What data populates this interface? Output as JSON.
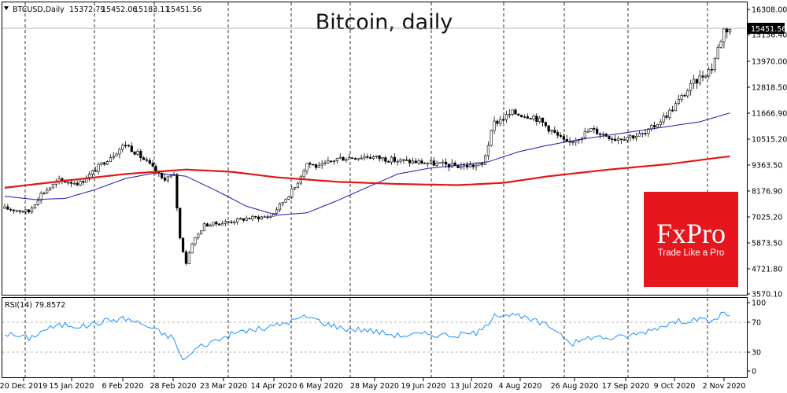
{
  "chart_data": [
    {
      "type": "candlestick",
      "title": "Bitcoin, daily",
      "header": {
        "symbol": "BTCUSD,Daily",
        "ohlc": [
          "15372.79",
          "15452.06",
          "15183.11",
          "15451.56"
        ]
      },
      "ylim": [
        3000,
        16300
      ],
      "y_ticks": [
        "16308.00",
        "15156.40",
        "13970.00",
        "12818.50",
        "11666.90",
        "10515.20",
        "9363.50",
        "8176.90",
        "7025.20",
        "5873.50",
        "4721.80",
        "3570.10"
      ],
      "current_price_label": "15451.56",
      "x_tick_labels": [
        "20 Dec 2019",
        "15 Jan 2020",
        "6 Feb 2020",
        "28 Feb 2020",
        "23 Mar 2020",
        "14 Apr 2020",
        "6 May 2020",
        "28 May 2020",
        "19 Jun 2020",
        "13 Jul 2020",
        "4 Aug 2020",
        "26 Aug 2020",
        "17 Sep 2020",
        "9 Oct 2020",
        "2 Nov 2020"
      ],
      "grid": "vertical dashed",
      "moving_averages": [
        {
          "color": "#1a1aa8",
          "points": [
            [
              0,
              7900
            ],
            [
              10,
              7750
            ],
            [
              20,
              7800
            ],
            [
              30,
              8200
            ],
            [
              40,
              8700
            ],
            [
              50,
              8950
            ],
            [
              60,
              8800
            ],
            [
              70,
              8150
            ],
            [
              80,
              7450
            ],
            [
              90,
              7050
            ],
            [
              100,
              7150
            ],
            [
              110,
              7700
            ],
            [
              120,
              8300
            ],
            [
              130,
              8900
            ],
            [
              140,
              9150
            ],
            [
              150,
              9300
            ],
            [
              160,
              9450
            ],
            [
              170,
              9900
            ],
            [
              180,
              10200
            ],
            [
              190,
              10450
            ],
            [
              200,
              10650
            ],
            [
              210,
              10850
            ],
            [
              220,
              11050
            ],
            [
              230,
              11250
            ],
            [
              240,
              11650
            ]
          ]
        },
        {
          "color": "#e01818",
          "points": [
            [
              0,
              8280
            ],
            [
              20,
              8600
            ],
            [
              40,
              8900
            ],
            [
              60,
              9100
            ],
            [
              75,
              9000
            ],
            [
              90,
              8750
            ],
            [
              110,
              8550
            ],
            [
              130,
              8450
            ],
            [
              150,
              8400
            ],
            [
              165,
              8500
            ],
            [
              180,
              8800
            ],
            [
              200,
              9100
            ],
            [
              220,
              9350
            ],
            [
              240,
              9700
            ]
          ]
        }
      ],
      "price_path": [
        [
          0,
          7350
        ],
        [
          8,
          7200
        ],
        [
          12,
          8000
        ],
        [
          18,
          8600
        ],
        [
          25,
          8500
        ],
        [
          35,
          9700
        ],
        [
          40,
          10250
        ],
        [
          44,
          9800
        ],
        [
          48,
          9300
        ],
        [
          52,
          8700
        ],
        [
          56,
          8800
        ],
        [
          58,
          6000
        ],
        [
          60,
          4900
        ],
        [
          62,
          5800
        ],
        [
          66,
          6600
        ],
        [
          72,
          6700
        ],
        [
          80,
          6900
        ],
        [
          88,
          7000
        ],
        [
          96,
          8300
        ],
        [
          100,
          9400
        ],
        [
          104,
          9200
        ],
        [
          110,
          9600
        ],
        [
          120,
          9700
        ],
        [
          130,
          9500
        ],
        [
          140,
          9400
        ],
        [
          150,
          9250
        ],
        [
          158,
          9300
        ],
        [
          162,
          11200
        ],
        [
          168,
          11650
        ],
        [
          175,
          11500
        ],
        [
          178,
          11200
        ],
        [
          186,
          10250
        ],
        [
          194,
          10900
        ],
        [
          202,
          10500
        ],
        [
          212,
          10700
        ],
        [
          220,
          11700
        ],
        [
          228,
          13000
        ],
        [
          234,
          13700
        ],
        [
          238,
          15400
        ],
        [
          240,
          15451
        ]
      ],
      "rsi": {
        "label": "RSI(14) 79.8572",
        "levels": [
          "100",
          "70",
          "30",
          "0"
        ],
        "guides": [
          70,
          30
        ],
        "path": [
          [
            0,
            55
          ],
          [
            8,
            48
          ],
          [
            14,
            62
          ],
          [
            20,
            68
          ],
          [
            26,
            65
          ],
          [
            34,
            74
          ],
          [
            40,
            77
          ],
          [
            46,
            68
          ],
          [
            52,
            55
          ],
          [
            56,
            48
          ],
          [
            58,
            22
          ],
          [
            60,
            18
          ],
          [
            64,
            35
          ],
          [
            70,
            45
          ],
          [
            78,
            58
          ],
          [
            86,
            62
          ],
          [
            94,
            72
          ],
          [
            100,
            80
          ],
          [
            106,
            70
          ],
          [
            112,
            62
          ],
          [
            120,
            60
          ],
          [
            130,
            52
          ],
          [
            140,
            54
          ],
          [
            150,
            52
          ],
          [
            158,
            58
          ],
          [
            162,
            84
          ],
          [
            168,
            82
          ],
          [
            176,
            72
          ],
          [
            182,
            62
          ],
          [
            188,
            40
          ],
          [
            194,
            50
          ],
          [
            202,
            48
          ],
          [
            210,
            55
          ],
          [
            220,
            70
          ],
          [
            228,
            76
          ],
          [
            234,
            72
          ],
          [
            238,
            86
          ],
          [
            240,
            80
          ]
        ]
      }
    }
  ],
  "logo": {
    "wordmark": "FxPro",
    "tagline": "Trade Like a Pro",
    "bg_color": "#e5161d"
  },
  "colors": {
    "candle_color": "#000000",
    "ma_fast": "#1a1aa8",
    "ma_slow": "#e01818",
    "rsi_line": "#1e90ff"
  }
}
